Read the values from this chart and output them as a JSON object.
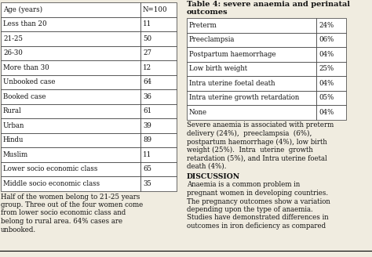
{
  "left_headers": [
    "Age (years)",
    "N=100"
  ],
  "left_rows": [
    [
      "Less than 20",
      "11"
    ],
    [
      "21-25",
      "50"
    ],
    [
      "26-30",
      "27"
    ],
    [
      "More than 30",
      "12"
    ],
    [
      "Unbooked case",
      "64"
    ],
    [
      "Booked case",
      "36"
    ],
    [
      "Rural",
      "61"
    ],
    [
      "Urban",
      "39"
    ],
    [
      "Hindu",
      "89"
    ],
    [
      "Muslim",
      "11"
    ],
    [
      "Lower socio economic class",
      "65"
    ],
    [
      "Middle socio economic class",
      "35"
    ]
  ],
  "right_title_line1": "Table 4: severe anaemia and perinatal",
  "right_title_line2": "outcomes",
  "right_rows": [
    [
      "Preterm",
      "24%"
    ],
    [
      "Preeclampsia",
      "06%"
    ],
    [
      "Postpartum haemorrhage",
      "04%"
    ],
    [
      "Low birth weight",
      "25%"
    ],
    [
      "Intra uterine foetal death",
      "04%"
    ],
    [
      "Intra uterine growth retardation",
      "05%"
    ],
    [
      "None",
      "04%"
    ]
  ],
  "left_para_lines": [
    "Half of the women belong to 21-25 years",
    "group. Three out of the four women come",
    "from lower socio economic class and",
    "belong to rural area. 64% cases are",
    "unbooked."
  ],
  "severe_lines": [
    "Severe anaemia is associated with preterm",
    "delivery (24%),  preeclampsia  (6%),",
    "postpartum haemorrhage (4%), low birth",
    "weight (25%).  Intra  uterine  growth",
    "retardation (5%), and Intra uterine foetal",
    "death (4%)."
  ],
  "discussion_label": "DISCUSSION",
  "discussion_lines": [
    "Anaemia is a common problem in",
    "pregnant women in developing countries.",
    "The pregnancy outcomes show a variation",
    "depending upon the type of anaemia.",
    "Studies have demonstrated differences in",
    "outcomes in iron deficiency as compared"
  ],
  "bg_color": "#f0ece0",
  "cell_color": "#ffffff",
  "border_color": "#333333",
  "text_color": "#111111",
  "fs": 6.2,
  "fs_title": 7.0,
  "fs_para": 6.2
}
